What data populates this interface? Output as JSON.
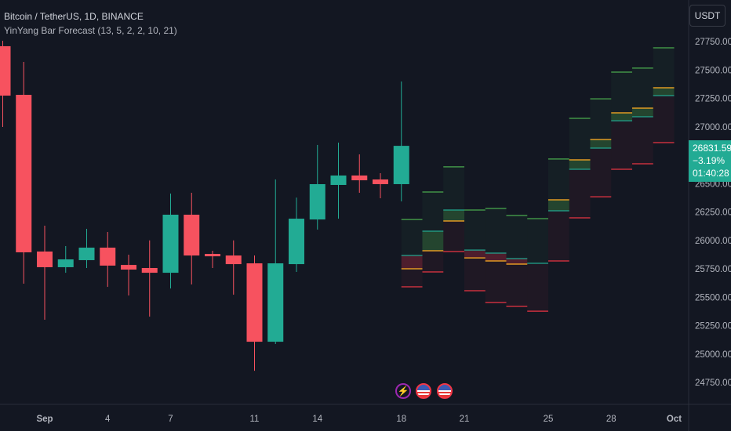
{
  "header": {
    "symbol_title": "Bitcoin / TetherUS, 1D, BINANCE",
    "indicator_title": "YinYang Bar Forecast (13, 5, 2, 2, 10, 21)",
    "currency_button": "USDT"
  },
  "last_price": {
    "price": "26831.59",
    "change": "−3.19%",
    "countdown": "01:40:28"
  },
  "events": [
    {
      "icon": "lightning-icon"
    },
    {
      "icon": "us-flag-icon"
    },
    {
      "icon": "us-flag-icon"
    }
  ],
  "colors": {
    "background": "#131722",
    "up": "#22ab94",
    "down": "#f7525f",
    "forecast_high": "#4caf50",
    "forecast_low": "#f23645",
    "forecast_open_line": "#22ab94",
    "forecast_close_line": "#f5a623"
  },
  "chart_data": {
    "type": "candlestick",
    "title": "Bitcoin / TetherUS, 1D, BINANCE",
    "ylim": [
      24600,
      27900
    ],
    "grid": false,
    "y_ticks": [
      "27750.00",
      "27500.00",
      "27250.00",
      "27000.00",
      "26500.00",
      "26250.00",
      "26000.00",
      "25750.00",
      "25500.00",
      "25250.00",
      "25000.00",
      "24750.00"
    ],
    "x_ticks": [
      {
        "label": "Sep",
        "date": "Sep 1"
      },
      {
        "label": "4",
        "date": "Sep 4"
      },
      {
        "label": "7",
        "date": "Sep 7"
      },
      {
        "label": "11",
        "date": "Sep 11"
      },
      {
        "label": "14",
        "date": "Sep 14"
      },
      {
        "label": "18",
        "date": "Sep 18"
      },
      {
        "label": "21",
        "date": "Sep 21"
      },
      {
        "label": "25",
        "date": "Sep 25"
      },
      {
        "label": "28",
        "date": "Sep 28"
      },
      {
        "label": "Oct",
        "date": "Oct 1"
      }
    ],
    "candles": [
      {
        "date": "Aug 30",
        "o": 27709,
        "h": 27757,
        "l": 26998,
        "c": 27274
      },
      {
        "date": "Aug 31",
        "o": 27281,
        "h": 27571,
        "l": 25619,
        "c": 25895
      },
      {
        "date": "Sep 1",
        "o": 25902,
        "h": 26129,
        "l": 25302,
        "c": 25764
      },
      {
        "date": "Sep 2",
        "o": 25764,
        "h": 25950,
        "l": 25715,
        "c": 25833
      },
      {
        "date": "Sep 3",
        "o": 25826,
        "h": 26102,
        "l": 25757,
        "c": 25936
      },
      {
        "date": "Sep 4",
        "o": 25936,
        "h": 26074,
        "l": 25591,
        "c": 25778
      },
      {
        "date": "Sep 5",
        "o": 25784,
        "h": 25874,
        "l": 25515,
        "c": 25743
      },
      {
        "date": "Sep 6",
        "o": 25757,
        "h": 26000,
        "l": 25329,
        "c": 25715
      },
      {
        "date": "Sep 7",
        "o": 25715,
        "h": 26412,
        "l": 25577,
        "c": 26226
      },
      {
        "date": "Sep 8",
        "o": 26226,
        "h": 26419,
        "l": 25612,
        "c": 25867
      },
      {
        "date": "Sep 9",
        "o": 25881,
        "h": 25909,
        "l": 25757,
        "c": 25860
      },
      {
        "date": "Sep 10",
        "o": 25867,
        "h": 26000,
        "l": 25522,
        "c": 25791
      },
      {
        "date": "Sep 11",
        "o": 25798,
        "h": 25867,
        "l": 24853,
        "c": 25108
      },
      {
        "date": "Sep 12",
        "o": 25108,
        "h": 26536,
        "l": 25088,
        "c": 25798
      },
      {
        "date": "Sep 13",
        "o": 25791,
        "h": 26377,
        "l": 25722,
        "c": 26191
      },
      {
        "date": "Sep 14",
        "o": 26184,
        "h": 26840,
        "l": 26095,
        "c": 26495
      },
      {
        "date": "Sep 15",
        "o": 26488,
        "h": 26860,
        "l": 26191,
        "c": 26571
      },
      {
        "date": "Sep 16",
        "o": 26571,
        "h": 26757,
        "l": 26419,
        "c": 26529
      },
      {
        "date": "Sep 17",
        "o": 26536,
        "h": 26591,
        "l": 26371,
        "c": 26495
      },
      {
        "date": "Sep 18",
        "o": 26495,
        "h": 27398,
        "l": 26343,
        "c": 26832
      }
    ],
    "forecast": [
      {
        "h": 26184,
        "l": 25591,
        "teal": 25867,
        "orange": 25750,
        "bias": "down"
      },
      {
        "h": 26426,
        "l": 25722,
        "teal": 26081,
        "orange": 25909,
        "bias": "up"
      },
      {
        "h": 26647,
        "l": 25902,
        "teal": 26267,
        "orange": 26171,
        "bias": "up"
      },
      {
        "h": 26267,
        "l": 25557,
        "teal": 25915,
        "orange": 25846,
        "bias": "down"
      },
      {
        "h": 26281,
        "l": 25453,
        "teal": 25888,
        "orange": 25819,
        "bias": "down"
      },
      {
        "h": 26219,
        "l": 25419,
        "teal": 25840,
        "orange": 25791,
        "bias": "down"
      },
      {
        "h": 26191,
        "l": 25377,
        "teal": 25798,
        "orange": 25798,
        "bias": "flat"
      },
      {
        "h": 26716,
        "l": 25819,
        "teal": 26260,
        "orange": 26357,
        "bias": "up"
      },
      {
        "h": 27074,
        "l": 26198,
        "teal": 26626,
        "orange": 26709,
        "bias": "up"
      },
      {
        "h": 27246,
        "l": 26384,
        "teal": 26812,
        "orange": 26888,
        "bias": "up"
      },
      {
        "h": 27481,
        "l": 26626,
        "teal": 27053,
        "orange": 27122,
        "bias": "up"
      },
      {
        "h": 27516,
        "l": 26674,
        "teal": 27088,
        "orange": 27164,
        "bias": "up"
      },
      {
        "h": 27695,
        "l": 26860,
        "teal": 27274,
        "orange": 27343,
        "bias": "up"
      }
    ]
  }
}
